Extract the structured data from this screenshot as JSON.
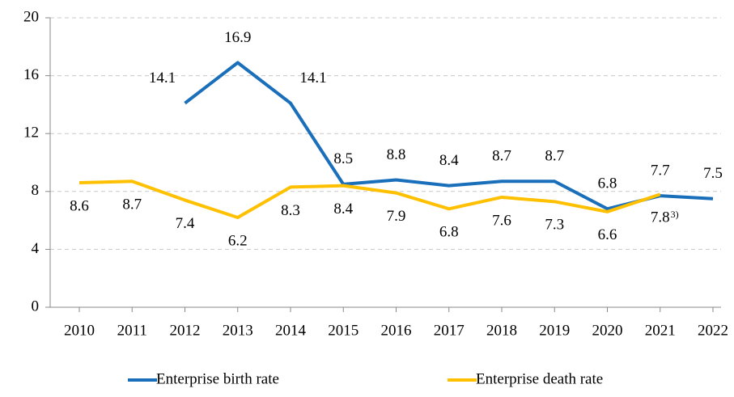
{
  "chart_data": {
    "type": "line",
    "categories": [
      "2010",
      "2011",
      "2012",
      "2013",
      "2014",
      "2015",
      "2016",
      "2017",
      "2018",
      "2019",
      "2020",
      "2021",
      "2022"
    ],
    "series": [
      {
        "name": "Enterprise birth rate",
        "color": "#1a6fbb",
        "values": [
          null,
          null,
          14.1,
          16.9,
          14.1,
          8.5,
          8.8,
          8.4,
          8.7,
          8.7,
          6.8,
          7.7,
          7.5
        ]
      },
      {
        "name": "Enterprise death rate",
        "color": "#ffc000",
        "values": [
          8.6,
          8.7,
          7.4,
          6.2,
          8.3,
          8.4,
          7.9,
          6.8,
          7.6,
          7.3,
          6.6,
          7.8,
          null
        ]
      }
    ],
    "annotations": [
      {
        "text": "3)",
        "x": "2021"
      }
    ],
    "ylim": [
      0,
      20
    ],
    "yticks": [
      0,
      4,
      8,
      12,
      16,
      20
    ],
    "grid": true,
    "legend": "bottom"
  }
}
